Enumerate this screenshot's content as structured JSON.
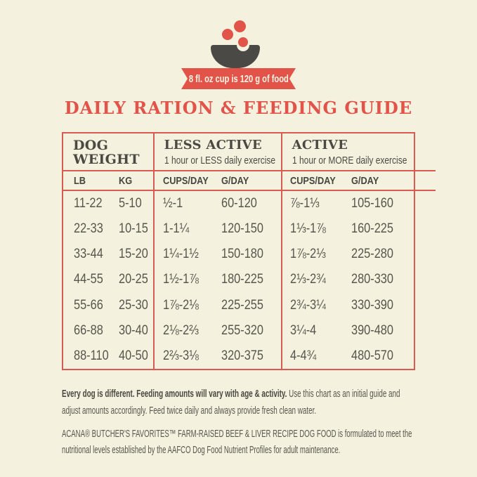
{
  "colors": {
    "background": "#f4f1df",
    "accent_red": "#e2544a",
    "table_border": "#d85a50",
    "heading_text": "#4b4a42",
    "body_text": "#57564c",
    "bowl_gray": "#4a4945"
  },
  "header": {
    "bowl_icon": "bowl-with-kibble",
    "badge_text": "8 fl. oz cup is 120 g of food",
    "title": "DAILY RATION & FEEDING GUIDE"
  },
  "chart_data": {
    "type": "table",
    "title": "DAILY RATION & FEEDING GUIDE",
    "measure_note": "8 fl. oz cup is 120 g of food",
    "column_groups": [
      {
        "label": "DOG WEIGHT",
        "sublabel": "",
        "columns": [
          "LB",
          "KG"
        ]
      },
      {
        "label": "LESS ACTIVE",
        "sublabel": "1 hour or LESS daily exercise",
        "columns": [
          "CUPS/DAY",
          "G/DAY"
        ]
      },
      {
        "label": "ACTIVE",
        "sublabel": "1 hour or MORE daily exercise",
        "columns": [
          "CUPS/DAY",
          "G/DAY"
        ]
      }
    ],
    "rows": [
      [
        "11-22",
        "5-10",
        "½-1",
        "60-120",
        "⅞-1⅓",
        "105-160"
      ],
      [
        "22-33",
        "10-15",
        "1-1¼",
        "120-150",
        "1⅓-1⅞",
        "160-225"
      ],
      [
        "33-44",
        "15-20",
        "1¼-1½",
        "150-180",
        "1⅞-2⅓",
        "225-280"
      ],
      [
        "44-55",
        "20-25",
        "1½-1⅞",
        "180-225",
        "2⅓-2¾",
        "280-330"
      ],
      [
        "55-66",
        "25-30",
        "1⅞-2⅛",
        "225-255",
        "2¾-3¼",
        "330-390"
      ],
      [
        "66-88",
        "30-40",
        "2⅛-2⅔",
        "255-320",
        "3¼-4",
        "390-480"
      ],
      [
        "88-110",
        "40-50",
        "2⅔-3⅛",
        "320-375",
        "4-4¾",
        "480-570"
      ]
    ]
  },
  "notes": {
    "note1_bold": "Every dog is different. Feeding amounts will vary with age & activity.",
    "note1_rest": " Use this chart as an initial guide and adjust amounts accordingly. Feed twice daily and always provide fresh clean water.",
    "note2": "ACANA® BUTCHER'S FAVORITES™ FARM-RAISED BEEF & LIVER RECIPE DOG FOOD is formulated to meet the nutritional levels established by the AAFCO Dog Food Nutrient Profiles for adult maintenance."
  }
}
